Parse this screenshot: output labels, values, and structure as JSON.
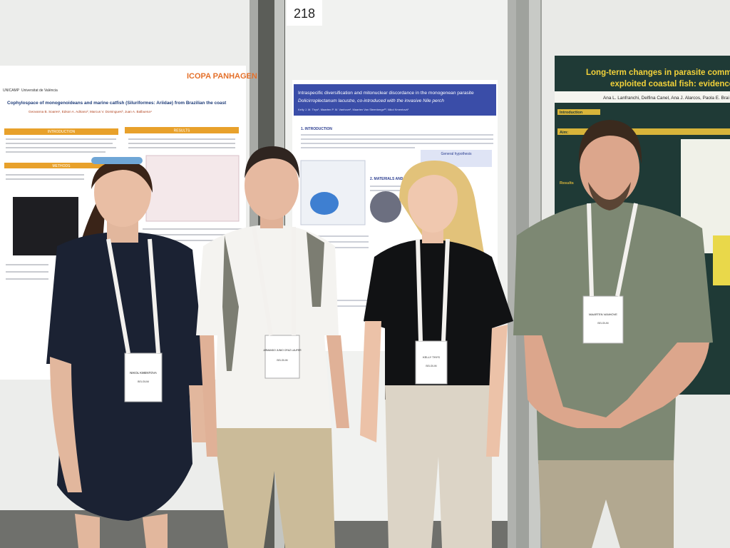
{
  "board_number": "218",
  "posters": [
    {
      "logos": [
        "UNICAMP",
        "Universitat de València"
      ],
      "conference": "ICOPA PANHAGEN",
      "title": "Cophylospace of monogenoideans and marine catfish (Siluriformes: Ariidae) from Brazilian the coast",
      "authors": "Geovanna B. Soares¹, Edson A. Adriano², Marcus V. Domingues³, Juan A. Balbuena⁴",
      "sections": [
        "INTRODUCTION",
        "RESULTS",
        "METHODS"
      ]
    },
    {
      "title": "Intraspecific diversification and mitonuclear discordance in the monogenean parasite",
      "title_italic": "Dolicirroplectanum lacustre, co-introduced with the invasive Nile perch",
      "authors": "Kelly J. M. Thys¹, Maarten P. M. Vanhove¹, Maarten Van Steenberge²³, Nikol Kmentová¹",
      "sections": [
        "1. INTRODUCTION",
        "General hypothesis",
        "2. MATERIALS AND METHODS"
      ]
    },
    {
      "title": "Long-term changes in parasite communit",
      "title_line2": "exploited coastal fish: evidence of c",
      "authors": "Ana L. Lanfranchi, Delfina Canel, Ana J. Alarcos, Paola E. Brai",
      "sections": [
        "Introduction",
        "Aim:",
        "Results"
      ]
    }
  ],
  "badges": [
    {
      "name": "NIKOL KMENTOVA",
      "country": "BELGIUM"
    },
    {
      "name": "ARMANDO JUNIO CRUZ LAUFER",
      "country": "BELGIUM"
    },
    {
      "name": "KELLY THYS",
      "country": "BELGIUM"
    },
    {
      "name": "MAARTEN VANHOVE",
      "country": "BELGIUM"
    }
  ]
}
